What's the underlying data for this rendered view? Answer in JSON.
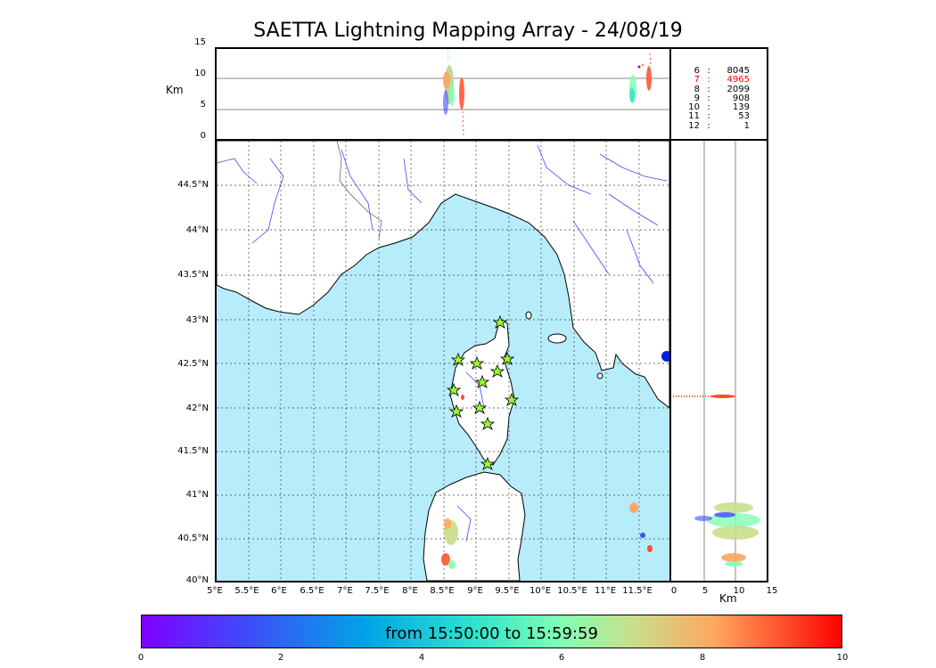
{
  "title": "SAETTA Lightning Mapping Array - 24/08/19",
  "altitude_axis": {
    "label": "Km",
    "ticks": [
      "15",
      "10",
      "5",
      "0"
    ]
  },
  "right_axis": {
    "label": "Km",
    "ticks": [
      "0",
      "5",
      "10",
      "15"
    ]
  },
  "latitude_ticks": [
    "44.5°N",
    "44°N",
    "43.5°N",
    "43°N",
    "42.5°N",
    "42°N",
    "41.5°N",
    "41°N",
    "40.5°N",
    "40°N"
  ],
  "longitude_ticks": [
    "5°E",
    "5.5°E",
    "6°E",
    "6.5°E",
    "7°E",
    "7.5°E",
    "8°E",
    "8.5°E",
    "9°E",
    "9.5°E",
    "10°E",
    "10.5°E",
    "11°E",
    "11.5°E"
  ],
  "station_counts": [
    {
      "stations": "6",
      "sep": ":",
      "count": "8045",
      "color": "#000000"
    },
    {
      "stations": "7",
      "sep": ":",
      "count": "4965",
      "color": "#ff0000"
    },
    {
      "stations": "8",
      "sep": ":",
      "count": "2099",
      "color": "#000000"
    },
    {
      "stations": "9",
      "sep": ":",
      "count": "908",
      "color": "#000000"
    },
    {
      "stations": "10",
      "sep": ":",
      "count": "139",
      "color": "#000000"
    },
    {
      "stations": "11",
      "sep": ":",
      "count": "53",
      "color": "#000000"
    },
    {
      "stations": "12",
      "sep": ":",
      "count": "1",
      "color": "#000000"
    }
  ],
  "colorbar": {
    "label": "from 15:50:00 to 15:59:59",
    "ticks": [
      "0",
      "2",
      "4",
      "6",
      "8",
      "10"
    ]
  },
  "colors": {
    "sea": "#b7ecfb",
    "land": "#ffffff",
    "rivers": "#4444ff",
    "station_marker": "#99ff33"
  }
}
